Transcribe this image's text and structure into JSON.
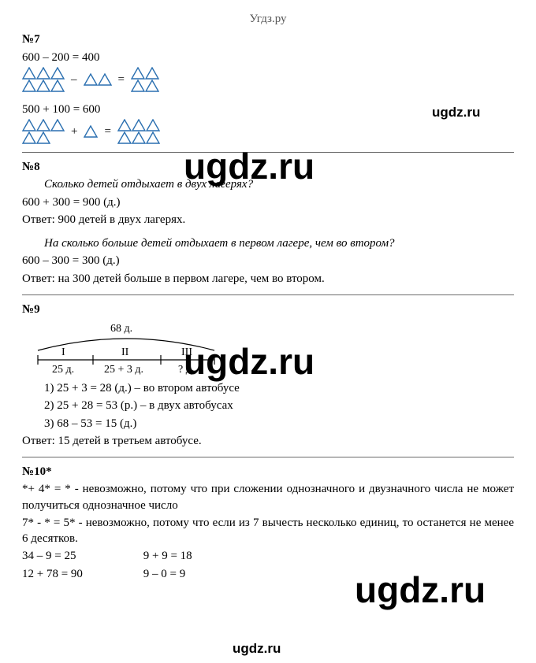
{
  "header": {
    "site": "Угдз.ру"
  },
  "watermarks": {
    "big": "ugdz.ru",
    "small": "ugdz.ru"
  },
  "triangle": {
    "stroke": "#2a6fb0",
    "fill": "none",
    "stroke_width": 1.4
  },
  "p7": {
    "title": "№7",
    "eq1": "600 – 200 = 400",
    "eq2": "500 + 100 = 600",
    "op_minus": "–",
    "op_plus": "+",
    "op_eq": "="
  },
  "p8": {
    "title": "№8",
    "q1": "Сколько детей отдыхает в двух лагерях?",
    "l1": "600 + 300 = 900 (д.)",
    "a1": "Ответ: 900 детей в двух лагерях.",
    "q2": "На сколько больше детей отдыхает в первом лагере, чем во втором?",
    "l2": "600 – 300 = 300 (д.)",
    "a2": "Ответ: на 300 детей больше в первом лагере, чем во втором."
  },
  "p9": {
    "title": "№9",
    "diagram": {
      "total": "68 д.",
      "cols": [
        "I",
        "II",
        "III"
      ],
      "vals": [
        "25 д.",
        "25 + 3 д.",
        "? д."
      ],
      "arc_color": "#000",
      "line_color": "#000"
    },
    "s1": "1) 25 + 3 = 28 (д.) – во втором автобусе",
    "s2": "2) 25 + 28 = 53 (р.) – в двух автобусах",
    "s3": "3) 68 – 53 = 15 (д.)",
    "ans": "Ответ: 15 детей в третьем автобусе."
  },
  "p10": {
    "title": "№10*",
    "l1": "*+ 4* = *  - невозможно, потому что при сложении однозначного и двузначного числа не может получиться однозначное число",
    "l2": "7* - * = 5* - невозможно, потому что если из 7 вычесть несколько единиц, то останется не менее 6 десятков.",
    "r1a": "34 – 9 = 25",
    "r1b": "9 + 9 = 18",
    "r2a": "12 + 78 = 90",
    "r2b": "9 – 0 = 9"
  },
  "colors": {
    "text": "#000000",
    "header": "#555555",
    "separator": "#6b6b6b",
    "background": "#ffffff"
  }
}
